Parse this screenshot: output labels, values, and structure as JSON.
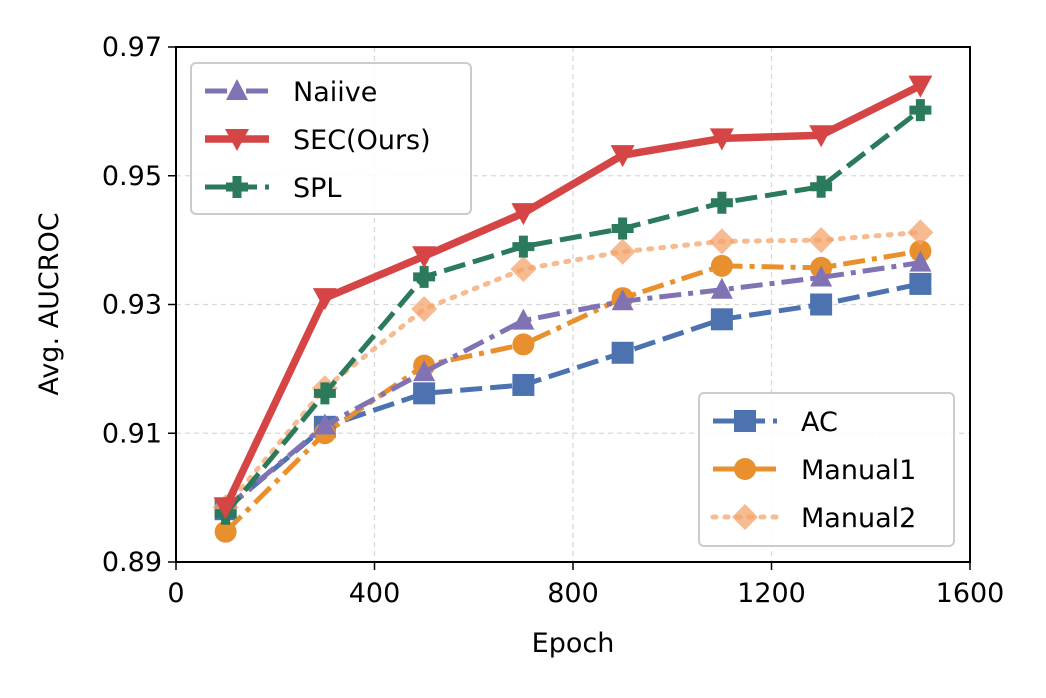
{
  "chart_data": {
    "type": "line",
    "title": "",
    "xlabel": "Epoch",
    "ylabel": "Avg. AUCROC",
    "xlim": [
      0,
      1600
    ],
    "ylim": [
      0.89,
      0.97
    ],
    "xticks": [
      0,
      400,
      800,
      1200,
      1600
    ],
    "xtick_labels": [
      "0",
      "400",
      "800",
      "1200",
      "1600"
    ],
    "yticks": [
      0.89,
      0.91,
      0.93,
      0.95,
      0.97
    ],
    "ytick_labels": [
      "0.89",
      "0.91",
      "0.93",
      "0.95",
      "0.97"
    ],
    "grid": true,
    "x": [
      100,
      300,
      500,
      700,
      900,
      1100,
      1300,
      1500
    ],
    "series": [
      {
        "name": "AC",
        "color": "#4C72B0",
        "marker": "square",
        "dash": "dashed",
        "values": [
          0.8982,
          0.911,
          0.9162,
          0.9175,
          0.9225,
          0.9277,
          0.93,
          0.9332
        ]
      },
      {
        "name": "Manual1",
        "color": "#E8902E",
        "marker": "circle",
        "dash": "dashdot",
        "values": [
          0.8947,
          0.91,
          0.9205,
          0.9238,
          0.931,
          0.936,
          0.9357,
          0.9383
        ]
      },
      {
        "name": "Manual2",
        "color": "#F4A46C",
        "marker": "diamond",
        "dash": "dotted",
        "values": [
          0.8985,
          0.917,
          0.9293,
          0.9355,
          0.9382,
          0.9398,
          0.94,
          0.9412
        ]
      },
      {
        "name": "Naiive",
        "color": "#8172B3",
        "marker": "triangle-up",
        "dash": "dashdot",
        "values": [
          0.8983,
          0.9112,
          0.9195,
          0.9275,
          0.9305,
          0.9323,
          0.9342,
          0.9365
        ]
      },
      {
        "name": "SPL",
        "color": "#2A7A5B",
        "marker": "plus",
        "dash": "dashed",
        "values": [
          0.8975,
          0.9162,
          0.9343,
          0.939,
          0.9418,
          0.9458,
          0.9483,
          0.9602
        ]
      },
      {
        "name": "SEC(Ours)",
        "color": "#D64545",
        "marker": "triangle-down",
        "dash": "solid",
        "values": [
          0.8985,
          0.931,
          0.9375,
          0.9442,
          0.9532,
          0.9558,
          0.9563,
          0.964
        ]
      }
    ],
    "legends": [
      {
        "position": "top-left",
        "entries": [
          "Naiive",
          "SEC(Ours)",
          "SPL"
        ]
      },
      {
        "position": "bottom-right",
        "entries": [
          "AC",
          "Manual1",
          "Manual2"
        ]
      }
    ]
  }
}
